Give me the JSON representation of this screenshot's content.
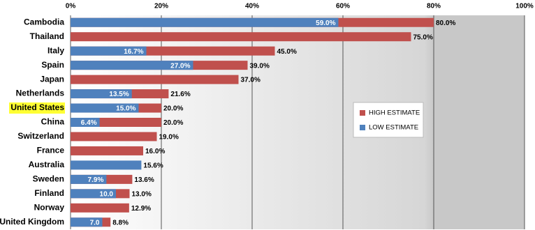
{
  "chart_data": {
    "type": "overlapping-bar",
    "categories": [
      "Cambodia",
      "Thailand",
      "Italy",
      "Spain",
      "Japan",
      "Netherlands",
      "United States",
      "China",
      "Switzerland",
      "France",
      "Australia",
      "Sweden",
      "Finland",
      "Norway",
      "United Kingdom"
    ],
    "highlight_index": 6,
    "highlight_color": "#ffff33",
    "series": [
      {
        "name": "HIGH ESTIMATE",
        "color": "#c0504d",
        "values": [
          80.0,
          75.0,
          45.0,
          39.0,
          37.0,
          21.6,
          20.0,
          20.0,
          19.0,
          16.0,
          null,
          13.6,
          13.0,
          12.9,
          8.8
        ],
        "value_labels": [
          "80.0%",
          "75.0%",
          "45.0%",
          "39.0%",
          "37.0%",
          "21.6%",
          "20.0%",
          "20.0%",
          "19.0%",
          "16.0%",
          null,
          "13.6%",
          "13.0%",
          "12.9%",
          "8.8%"
        ]
      },
      {
        "name": "LOW ESTIMATE",
        "color": "#4f81bd",
        "values": [
          59.0,
          null,
          16.7,
          27.0,
          null,
          13.5,
          15.0,
          6.4,
          null,
          null,
          15.6,
          7.9,
          10.0,
          null,
          7.0
        ],
        "value_labels": [
          "59.0%",
          null,
          "16.7%",
          "27.0%",
          null,
          "13.5%",
          "15.0%",
          "6.4%",
          null,
          null,
          "15.6%",
          "7.9%",
          "10.0",
          null,
          "7.0"
        ]
      }
    ],
    "xlim": [
      0,
      100
    ],
    "xticks": [
      {
        "value": 0,
        "label": "0%"
      },
      {
        "value": 20,
        "label": "20%"
      },
      {
        "value": 40,
        "label": "40%"
      },
      {
        "value": 60,
        "label": "60%"
      },
      {
        "value": 80,
        "label": "80%"
      },
      {
        "value": 100,
        "label": "100%"
      }
    ],
    "grid": true
  }
}
